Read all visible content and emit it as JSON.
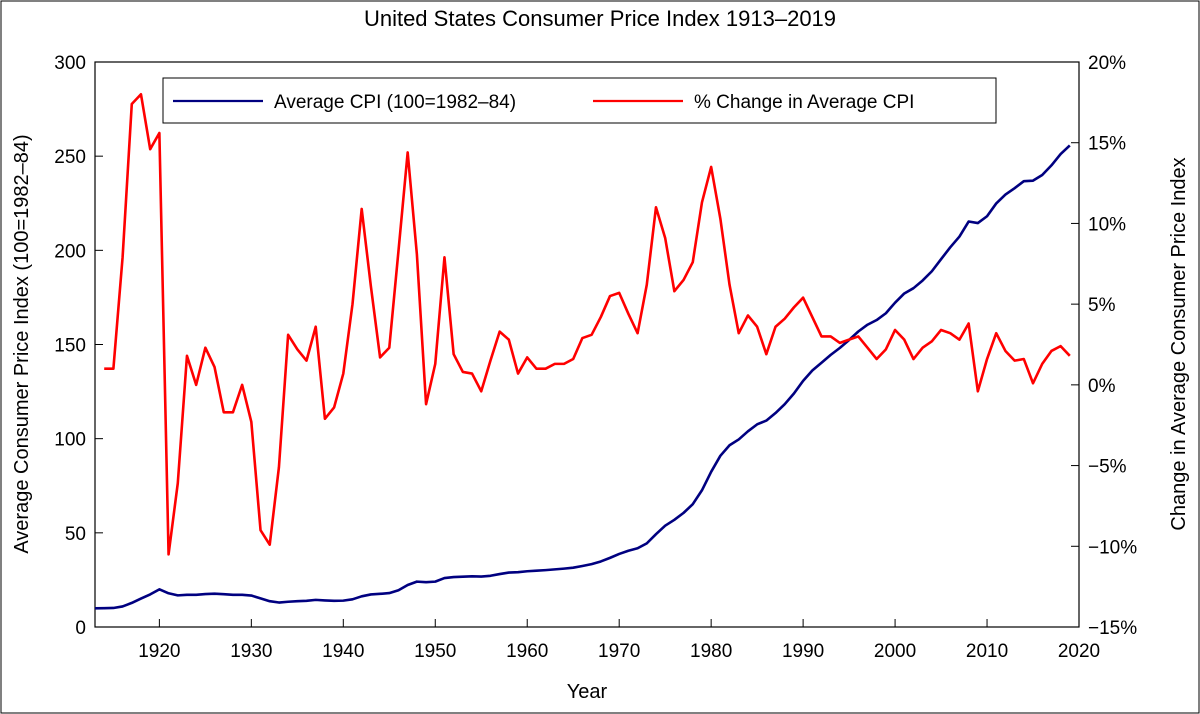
{
  "chart_data": {
    "type": "line",
    "title": "United States Consumer Price Index 1913–2019",
    "xlabel": "Year",
    "ylabel_left": "Average Consumer Price Index (100=1982–84)",
    "ylabel_right": "Change in Average Consumer Price Index",
    "xlim": [
      1913,
      2020
    ],
    "ylim_left": [
      0,
      300
    ],
    "ylim_right": [
      -15,
      20
    ],
    "x_ticks": [
      "1920",
      "1930",
      "1940",
      "1950",
      "1960",
      "1970",
      "1980",
      "1990",
      "2000",
      "2010",
      "2020"
    ],
    "y_left_ticks": [
      "0",
      "50",
      "100",
      "150",
      "200",
      "250",
      "300"
    ],
    "y_right_ticks": [
      "−15%",
      "−10%",
      "−5%",
      "0%",
      "5%",
      "10%",
      "15%",
      "20%"
    ],
    "legend_placement": "top",
    "grid": false,
    "series": [
      {
        "name": "Average CPI (100=1982–84)",
        "axis": "left",
        "color": "#000080",
        "x": [
          1913,
          1914,
          1915,
          1916,
          1917,
          1918,
          1919,
          1920,
          1921,
          1922,
          1923,
          1924,
          1925,
          1926,
          1927,
          1928,
          1929,
          1930,
          1931,
          1932,
          1933,
          1934,
          1935,
          1936,
          1937,
          1938,
          1939,
          1940,
          1941,
          1942,
          1943,
          1944,
          1945,
          1946,
          1947,
          1948,
          1949,
          1950,
          1951,
          1952,
          1953,
          1954,
          1955,
          1956,
          1957,
          1958,
          1959,
          1960,
          1961,
          1962,
          1963,
          1964,
          1965,
          1966,
          1967,
          1968,
          1969,
          1970,
          1971,
          1972,
          1973,
          1974,
          1975,
          1976,
          1977,
          1978,
          1979,
          1980,
          1981,
          1982,
          1983,
          1984,
          1985,
          1986,
          1987,
          1988,
          1989,
          1990,
          1991,
          1992,
          1993,
          1994,
          1995,
          1996,
          1997,
          1998,
          1999,
          2000,
          2001,
          2002,
          2003,
          2004,
          2005,
          2006,
          2007,
          2008,
          2009,
          2010,
          2011,
          2012,
          2013,
          2014,
          2015,
          2016,
          2017,
          2018,
          2019
        ],
        "values": [
          9.9,
          10.0,
          10.1,
          10.9,
          12.8,
          15.1,
          17.3,
          20.0,
          17.9,
          16.8,
          17.1,
          17.1,
          17.5,
          17.7,
          17.4,
          17.1,
          17.1,
          16.7,
          15.2,
          13.7,
          13.0,
          13.4,
          13.7,
          13.9,
          14.4,
          14.1,
          13.9,
          14.0,
          14.7,
          16.3,
          17.3,
          17.6,
          18.0,
          19.5,
          22.3,
          24.1,
          23.8,
          24.1,
          26.0,
          26.5,
          26.7,
          26.9,
          26.8,
          27.2,
          28.1,
          28.9,
          29.1,
          29.6,
          29.9,
          30.2,
          30.6,
          31.0,
          31.5,
          32.4,
          33.4,
          34.8,
          36.7,
          38.8,
          40.5,
          41.8,
          44.4,
          49.3,
          53.8,
          56.9,
          60.6,
          65.2,
          72.6,
          82.4,
          90.9,
          96.5,
          99.6,
          103.9,
          107.6,
          109.6,
          113.6,
          118.3,
          124.0,
          130.7,
          136.2,
          140.3,
          144.5,
          148.2,
          152.4,
          156.9,
          160.5,
          163.0,
          166.6,
          172.2,
          177.1,
          179.9,
          184.0,
          188.9,
          195.3,
          201.6,
          207.3,
          215.3,
          214.5,
          218.1,
          224.9,
          229.6,
          233.0,
          236.7,
          237.0,
          240.0,
          245.1,
          251.1,
          255.7
        ]
      },
      {
        "name": "% Change in Average CPI",
        "axis": "right",
        "color": "#ff0000",
        "x": [
          1914,
          1915,
          1916,
          1917,
          1918,
          1919,
          1920,
          1921,
          1922,
          1923,
          1924,
          1925,
          1926,
          1927,
          1928,
          1929,
          1930,
          1931,
          1932,
          1933,
          1934,
          1935,
          1936,
          1937,
          1938,
          1939,
          1940,
          1941,
          1942,
          1943,
          1944,
          1945,
          1946,
          1947,
          1948,
          1949,
          1950,
          1951,
          1952,
          1953,
          1954,
          1955,
          1956,
          1957,
          1958,
          1959,
          1960,
          1961,
          1962,
          1963,
          1964,
          1965,
          1966,
          1967,
          1968,
          1969,
          1970,
          1971,
          1972,
          1973,
          1974,
          1975,
          1976,
          1977,
          1978,
          1979,
          1980,
          1981,
          1982,
          1983,
          1984,
          1985,
          1986,
          1987,
          1988,
          1989,
          1990,
          1991,
          1992,
          1993,
          1994,
          1995,
          1996,
          1997,
          1998,
          1999,
          2000,
          2001,
          2002,
          2003,
          2004,
          2005,
          2006,
          2007,
          2008,
          2009,
          2010,
          2011,
          2012,
          2013,
          2014,
          2015,
          2016,
          2017,
          2018,
          2019
        ],
        "values": [
          1.0,
          1.0,
          7.9,
          17.4,
          18.0,
          14.6,
          15.6,
          -10.5,
          -6.1,
          1.8,
          0.0,
          2.3,
          1.1,
          -1.7,
          -1.7,
          0.0,
          -2.3,
          -9.0,
          -9.9,
          -5.1,
          3.1,
          2.2,
          1.5,
          3.6,
          -2.1,
          -1.4,
          0.7,
          5.0,
          10.9,
          6.1,
          1.7,
          2.3,
          8.3,
          14.4,
          8.1,
          -1.2,
          1.3,
          7.9,
          1.9,
          0.8,
          0.7,
          -0.4,
          1.5,
          3.3,
          2.8,
          0.7,
          1.7,
          1.0,
          1.0,
          1.3,
          1.3,
          1.6,
          2.9,
          3.1,
          4.2,
          5.5,
          5.7,
          4.4,
          3.2,
          6.2,
          11.0,
          9.1,
          5.8,
          6.5,
          7.6,
          11.3,
          13.5,
          10.3,
          6.2,
          3.2,
          4.3,
          3.6,
          1.9,
          3.6,
          4.1,
          4.8,
          5.4,
          4.2,
          3.0,
          3.0,
          2.6,
          2.8,
          3.0,
          2.3,
          1.6,
          2.2,
          3.4,
          2.8,
          1.6,
          2.3,
          2.7,
          3.4,
          3.2,
          2.8,
          3.8,
          -0.4,
          1.6,
          3.2,
          2.1,
          1.5,
          1.6,
          0.1,
          1.3,
          2.1,
          2.4,
          1.8
        ]
      }
    ]
  }
}
